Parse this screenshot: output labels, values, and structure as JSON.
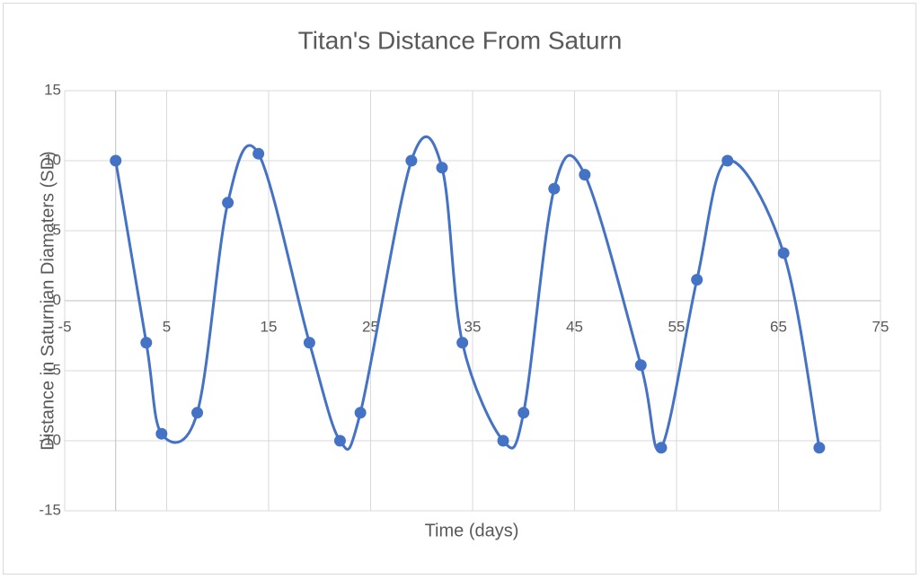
{
  "chart_data": {
    "type": "scatter",
    "title": "Titan's Distance From Saturn",
    "x_label": "Time (days)",
    "y_label": "Distance in Saturnian Diamaters (SD)",
    "x": [
      0,
      3,
      4.5,
      8,
      11,
      14,
      19,
      22,
      24,
      29,
      32,
      34,
      38,
      40,
      43,
      46,
      51.5,
      53.5,
      57,
      60,
      65.5,
      69
    ],
    "values": [
      10,
      -3,
      -9.5,
      -8,
      7,
      10.5,
      -3,
      -10,
      -8,
      10,
      9.5,
      -3,
      -10,
      -8,
      8,
      9,
      -4.6,
      -10.5,
      1.5,
      10,
      3.4,
      -10.5
    ],
    "color": "#4472c4",
    "smooth": true,
    "markers": true,
    "xlim": [
      -5,
      75
    ],
    "ylim": [
      -15,
      15
    ],
    "xticks": [
      -5,
      5,
      15,
      25,
      35,
      45,
      55,
      65,
      75
    ],
    "yticks": [
      -15,
      -10,
      -5,
      0,
      5,
      10,
      15
    ],
    "grid": true
  }
}
